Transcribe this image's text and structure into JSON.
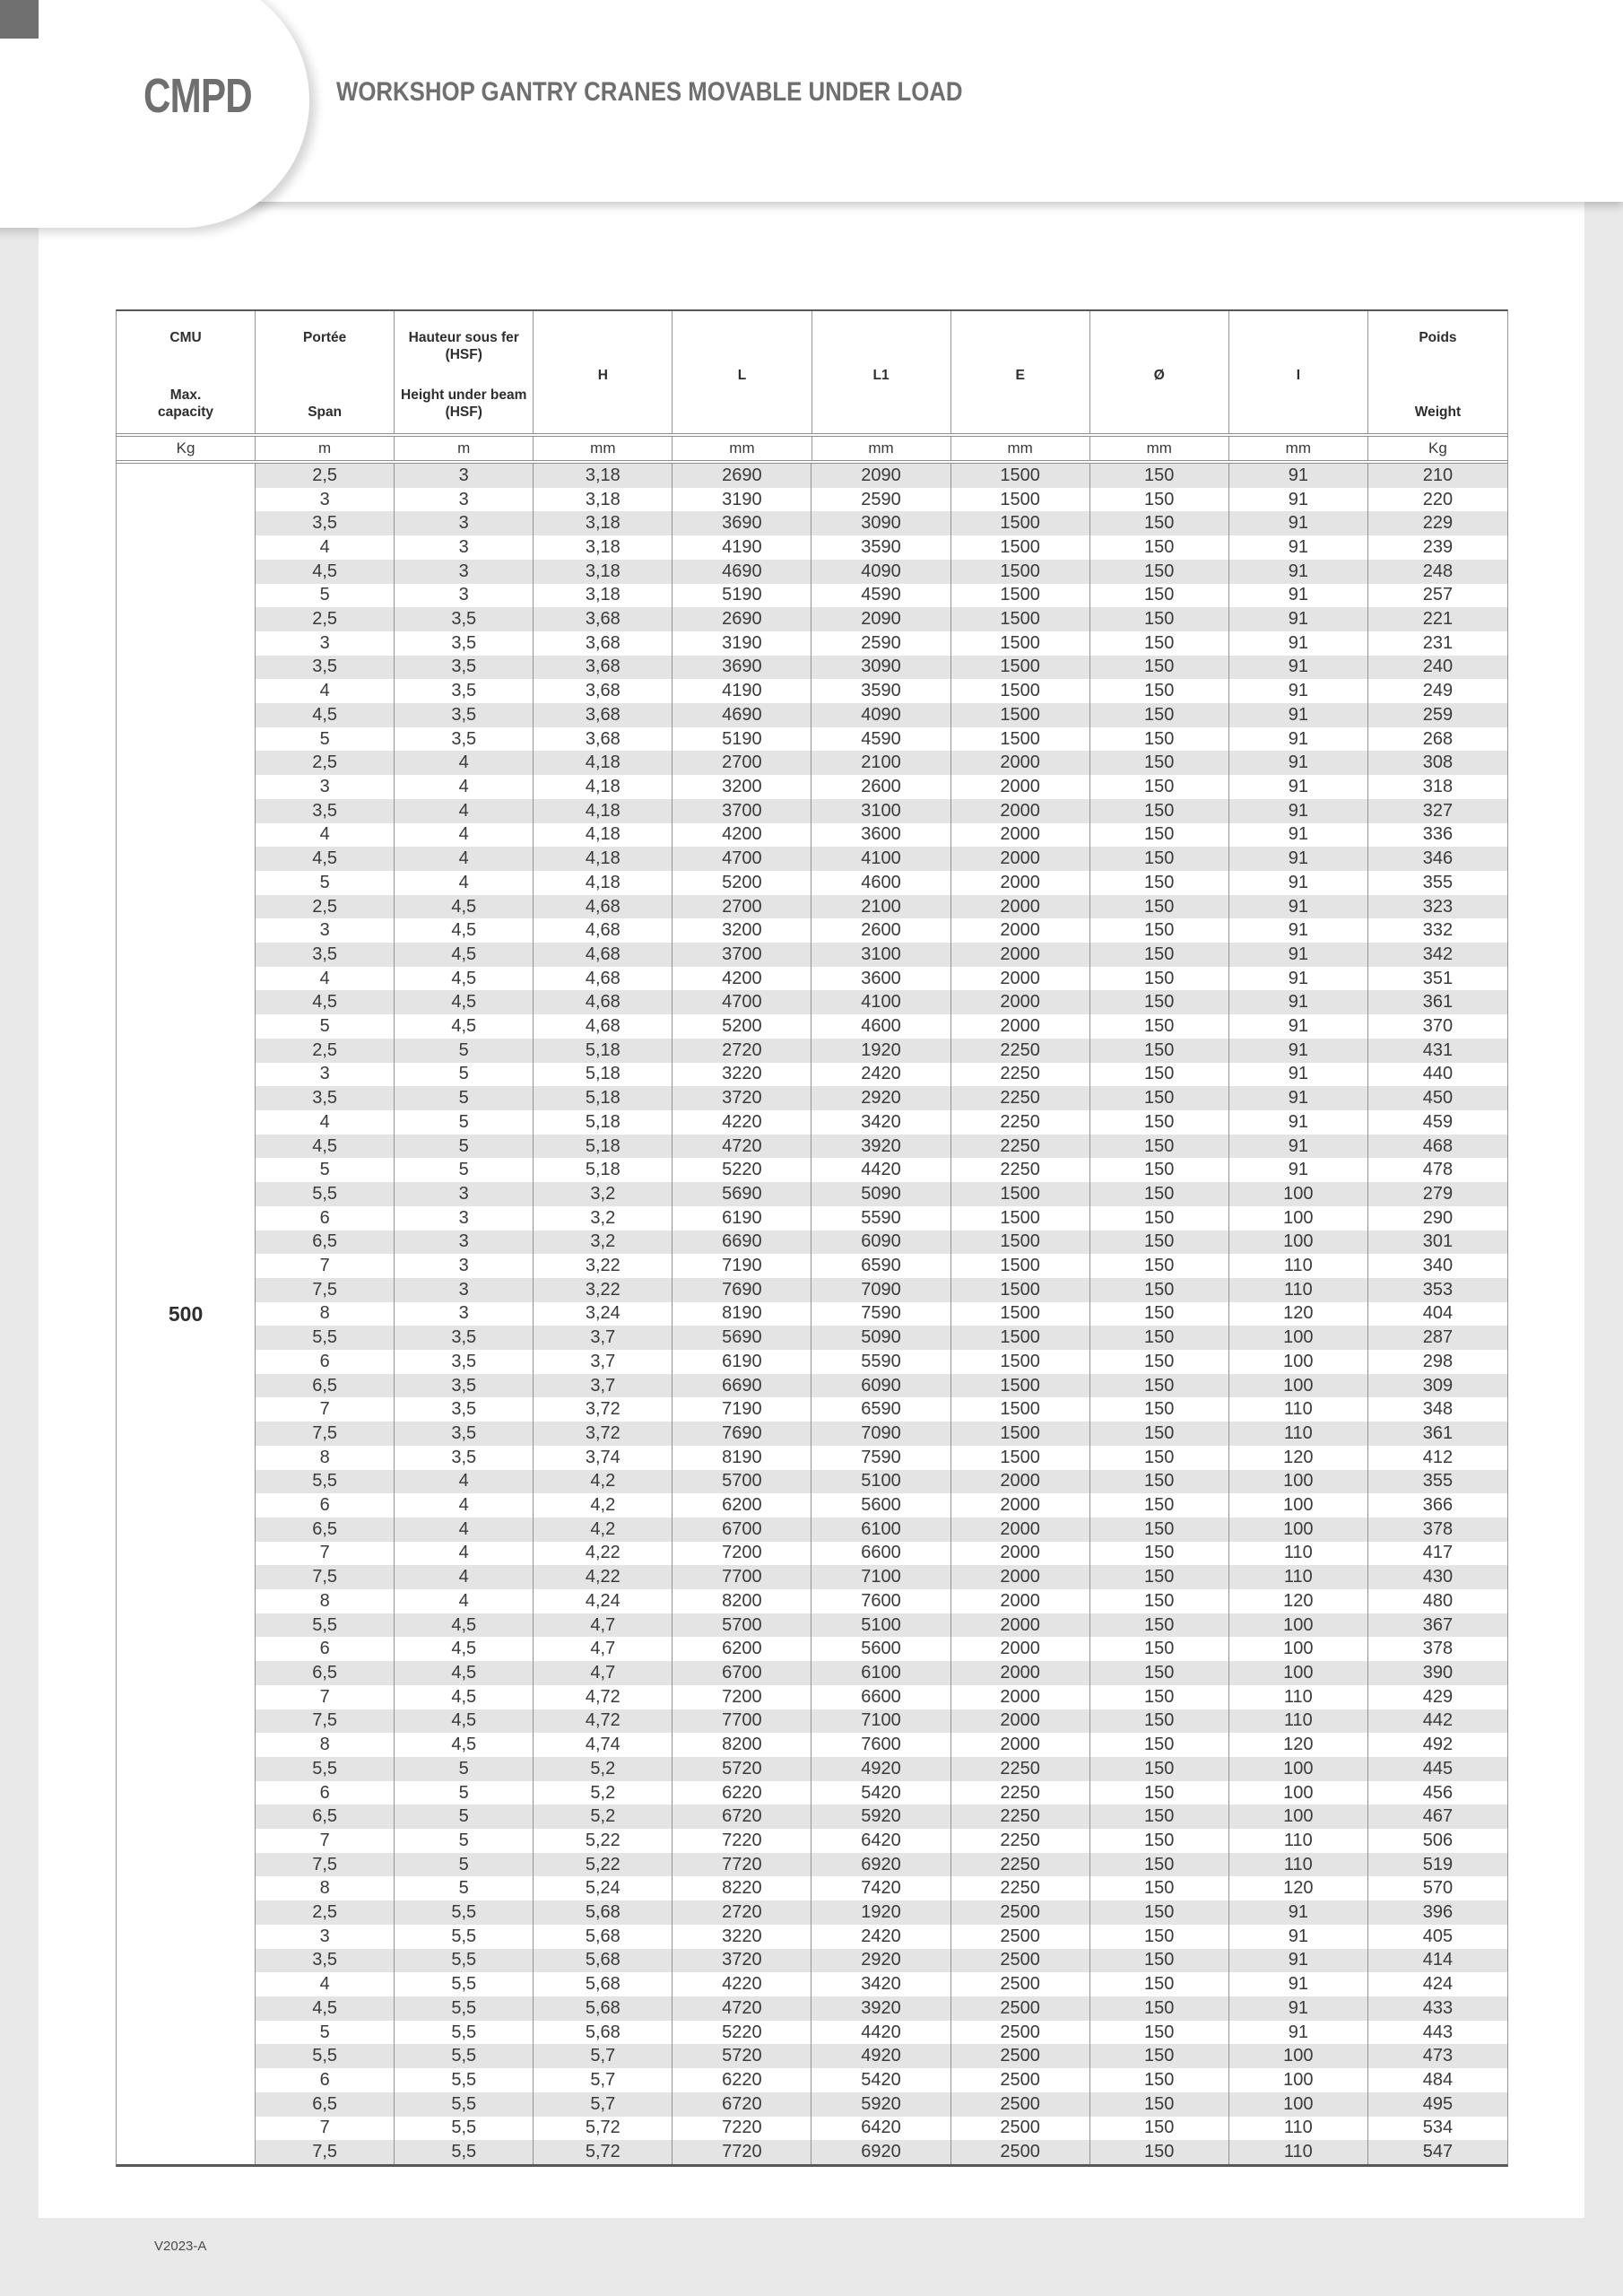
{
  "header": {
    "product_code": "CMPD",
    "title": "WORKSHOP GANTRY CRANES MOVABLE UNDER LOAD"
  },
  "colors": {
    "brand_grey": "#6f6f6f",
    "row_stripe": "#e4e4e4",
    "page_background": "#e9e9e9",
    "table_text": "#3a3a3a"
  },
  "table": {
    "capacity_value": "500",
    "columns": [
      {
        "label_fr": "CMU",
        "label_en": "Max.\ncapacity",
        "unit": "Kg"
      },
      {
        "label_fr": "Portée",
        "label_en": "Span",
        "unit": "m"
      },
      {
        "label_fr": "Hauteur sous fer\n(HSF)",
        "label_en": "Height under beam\n(HSF)",
        "unit": "m"
      },
      {
        "label": "H",
        "unit": "mm"
      },
      {
        "label": "L",
        "unit": "mm"
      },
      {
        "label": "L1",
        "unit": "mm"
      },
      {
        "label": "E",
        "unit": "mm"
      },
      {
        "label": "Ø",
        "unit": "mm"
      },
      {
        "label": "I",
        "unit": "mm"
      },
      {
        "label_fr": "Poids",
        "label_en": "Weight",
        "unit": "Kg"
      }
    ],
    "rows": [
      [
        "2,5",
        "3",
        "3,18",
        "2690",
        "2090",
        "1500",
        "150",
        "91",
        "210"
      ],
      [
        "3",
        "3",
        "3,18",
        "3190",
        "2590",
        "1500",
        "150",
        "91",
        "220"
      ],
      [
        "3,5",
        "3",
        "3,18",
        "3690",
        "3090",
        "1500",
        "150",
        "91",
        "229"
      ],
      [
        "4",
        "3",
        "3,18",
        "4190",
        "3590",
        "1500",
        "150",
        "91",
        "239"
      ],
      [
        "4,5",
        "3",
        "3,18",
        "4690",
        "4090",
        "1500",
        "150",
        "91",
        "248"
      ],
      [
        "5",
        "3",
        "3,18",
        "5190",
        "4590",
        "1500",
        "150",
        "91",
        "257"
      ],
      [
        "2,5",
        "3,5",
        "3,68",
        "2690",
        "2090",
        "1500",
        "150",
        "91",
        "221"
      ],
      [
        "3",
        "3,5",
        "3,68",
        "3190",
        "2590",
        "1500",
        "150",
        "91",
        "231"
      ],
      [
        "3,5",
        "3,5",
        "3,68",
        "3690",
        "3090",
        "1500",
        "150",
        "91",
        "240"
      ],
      [
        "4",
        "3,5",
        "3,68",
        "4190",
        "3590",
        "1500",
        "150",
        "91",
        "249"
      ],
      [
        "4,5",
        "3,5",
        "3,68",
        "4690",
        "4090",
        "1500",
        "150",
        "91",
        "259"
      ],
      [
        "5",
        "3,5",
        "3,68",
        "5190",
        "4590",
        "1500",
        "150",
        "91",
        "268"
      ],
      [
        "2,5",
        "4",
        "4,18",
        "2700",
        "2100",
        "2000",
        "150",
        "91",
        "308"
      ],
      [
        "3",
        "4",
        "4,18",
        "3200",
        "2600",
        "2000",
        "150",
        "91",
        "318"
      ],
      [
        "3,5",
        "4",
        "4,18",
        "3700",
        "3100",
        "2000",
        "150",
        "91",
        "327"
      ],
      [
        "4",
        "4",
        "4,18",
        "4200",
        "3600",
        "2000",
        "150",
        "91",
        "336"
      ],
      [
        "4,5",
        "4",
        "4,18",
        "4700",
        "4100",
        "2000",
        "150",
        "91",
        "346"
      ],
      [
        "5",
        "4",
        "4,18",
        "5200",
        "4600",
        "2000",
        "150",
        "91",
        "355"
      ],
      [
        "2,5",
        "4,5",
        "4,68",
        "2700",
        "2100",
        "2000",
        "150",
        "91",
        "323"
      ],
      [
        "3",
        "4,5",
        "4,68",
        "3200",
        "2600",
        "2000",
        "150",
        "91",
        "332"
      ],
      [
        "3,5",
        "4,5",
        "4,68",
        "3700",
        "3100",
        "2000",
        "150",
        "91",
        "342"
      ],
      [
        "4",
        "4,5",
        "4,68",
        "4200",
        "3600",
        "2000",
        "150",
        "91",
        "351"
      ],
      [
        "4,5",
        "4,5",
        "4,68",
        "4700",
        "4100",
        "2000",
        "150",
        "91",
        "361"
      ],
      [
        "5",
        "4,5",
        "4,68",
        "5200",
        "4600",
        "2000",
        "150",
        "91",
        "370"
      ],
      [
        "2,5",
        "5",
        "5,18",
        "2720",
        "1920",
        "2250",
        "150",
        "91",
        "431"
      ],
      [
        "3",
        "5",
        "5,18",
        "3220",
        "2420",
        "2250",
        "150",
        "91",
        "440"
      ],
      [
        "3,5",
        "5",
        "5,18",
        "3720",
        "2920",
        "2250",
        "150",
        "91",
        "450"
      ],
      [
        "4",
        "5",
        "5,18",
        "4220",
        "3420",
        "2250",
        "150",
        "91",
        "459"
      ],
      [
        "4,5",
        "5",
        "5,18",
        "4720",
        "3920",
        "2250",
        "150",
        "91",
        "468"
      ],
      [
        "5",
        "5",
        "5,18",
        "5220",
        "4420",
        "2250",
        "150",
        "91",
        "478"
      ],
      [
        "5,5",
        "3",
        "3,2",
        "5690",
        "5090",
        "1500",
        "150",
        "100",
        "279"
      ],
      [
        "6",
        "3",
        "3,2",
        "6190",
        "5590",
        "1500",
        "150",
        "100",
        "290"
      ],
      [
        "6,5",
        "3",
        "3,2",
        "6690",
        "6090",
        "1500",
        "150",
        "100",
        "301"
      ],
      [
        "7",
        "3",
        "3,22",
        "7190",
        "6590",
        "1500",
        "150",
        "110",
        "340"
      ],
      [
        "7,5",
        "3",
        "3,22",
        "7690",
        "7090",
        "1500",
        "150",
        "110",
        "353"
      ],
      [
        "8",
        "3",
        "3,24",
        "8190",
        "7590",
        "1500",
        "150",
        "120",
        "404"
      ],
      [
        "5,5",
        "3,5",
        "3,7",
        "5690",
        "5090",
        "1500",
        "150",
        "100",
        "287"
      ],
      [
        "6",
        "3,5",
        "3,7",
        "6190",
        "5590",
        "1500",
        "150",
        "100",
        "298"
      ],
      [
        "6,5",
        "3,5",
        "3,7",
        "6690",
        "6090",
        "1500",
        "150",
        "100",
        "309"
      ],
      [
        "7",
        "3,5",
        "3,72",
        "7190",
        "6590",
        "1500",
        "150",
        "110",
        "348"
      ],
      [
        "7,5",
        "3,5",
        "3,72",
        "7690",
        "7090",
        "1500",
        "150",
        "110",
        "361"
      ],
      [
        "8",
        "3,5",
        "3,74",
        "8190",
        "7590",
        "1500",
        "150",
        "120",
        "412"
      ],
      [
        "5,5",
        "4",
        "4,2",
        "5700",
        "5100",
        "2000",
        "150",
        "100",
        "355"
      ],
      [
        "6",
        "4",
        "4,2",
        "6200",
        "5600",
        "2000",
        "150",
        "100",
        "366"
      ],
      [
        "6,5",
        "4",
        "4,2",
        "6700",
        "6100",
        "2000",
        "150",
        "100",
        "378"
      ],
      [
        "7",
        "4",
        "4,22",
        "7200",
        "6600",
        "2000",
        "150",
        "110",
        "417"
      ],
      [
        "7,5",
        "4",
        "4,22",
        "7700",
        "7100",
        "2000",
        "150",
        "110",
        "430"
      ],
      [
        "8",
        "4",
        "4,24",
        "8200",
        "7600",
        "2000",
        "150",
        "120",
        "480"
      ],
      [
        "5,5",
        "4,5",
        "4,7",
        "5700",
        "5100",
        "2000",
        "150",
        "100",
        "367"
      ],
      [
        "6",
        "4,5",
        "4,7",
        "6200",
        "5600",
        "2000",
        "150",
        "100",
        "378"
      ],
      [
        "6,5",
        "4,5",
        "4,7",
        "6700",
        "6100",
        "2000",
        "150",
        "100",
        "390"
      ],
      [
        "7",
        "4,5",
        "4,72",
        "7200",
        "6600",
        "2000",
        "150",
        "110",
        "429"
      ],
      [
        "7,5",
        "4,5",
        "4,72",
        "7700",
        "7100",
        "2000",
        "150",
        "110",
        "442"
      ],
      [
        "8",
        "4,5",
        "4,74",
        "8200",
        "7600",
        "2000",
        "150",
        "120",
        "492"
      ],
      [
        "5,5",
        "5",
        "5,2",
        "5720",
        "4920",
        "2250",
        "150",
        "100",
        "445"
      ],
      [
        "6",
        "5",
        "5,2",
        "6220",
        "5420",
        "2250",
        "150",
        "100",
        "456"
      ],
      [
        "6,5",
        "5",
        "5,2",
        "6720",
        "5920",
        "2250",
        "150",
        "100",
        "467"
      ],
      [
        "7",
        "5",
        "5,22",
        "7220",
        "6420",
        "2250",
        "150",
        "110",
        "506"
      ],
      [
        "7,5",
        "5",
        "5,22",
        "7720",
        "6920",
        "2250",
        "150",
        "110",
        "519"
      ],
      [
        "8",
        "5",
        "5,24",
        "8220",
        "7420",
        "2250",
        "150",
        "120",
        "570"
      ],
      [
        "2,5",
        "5,5",
        "5,68",
        "2720",
        "1920",
        "2500",
        "150",
        "91",
        "396"
      ],
      [
        "3",
        "5,5",
        "5,68",
        "3220",
        "2420",
        "2500",
        "150",
        "91",
        "405"
      ],
      [
        "3,5",
        "5,5",
        "5,68",
        "3720",
        "2920",
        "2500",
        "150",
        "91",
        "414"
      ],
      [
        "4",
        "5,5",
        "5,68",
        "4220",
        "3420",
        "2500",
        "150",
        "91",
        "424"
      ],
      [
        "4,5",
        "5,5",
        "5,68",
        "4720",
        "3920",
        "2500",
        "150",
        "91",
        "433"
      ],
      [
        "5",
        "5,5",
        "5,68",
        "5220",
        "4420",
        "2500",
        "150",
        "91",
        "443"
      ],
      [
        "5,5",
        "5,5",
        "5,7",
        "5720",
        "4920",
        "2500",
        "150",
        "100",
        "473"
      ],
      [
        "6",
        "5,5",
        "5,7",
        "6220",
        "5420",
        "2500",
        "150",
        "100",
        "484"
      ],
      [
        "6,5",
        "5,5",
        "5,7",
        "6720",
        "5920",
        "2500",
        "150",
        "100",
        "495"
      ],
      [
        "7",
        "5,5",
        "5,72",
        "7220",
        "6420",
        "2500",
        "150",
        "110",
        "534"
      ],
      [
        "7,5",
        "5,5",
        "5,72",
        "7720",
        "6920",
        "2500",
        "150",
        "110",
        "547"
      ]
    ]
  },
  "footer": {
    "version_label": "V2023-A"
  }
}
